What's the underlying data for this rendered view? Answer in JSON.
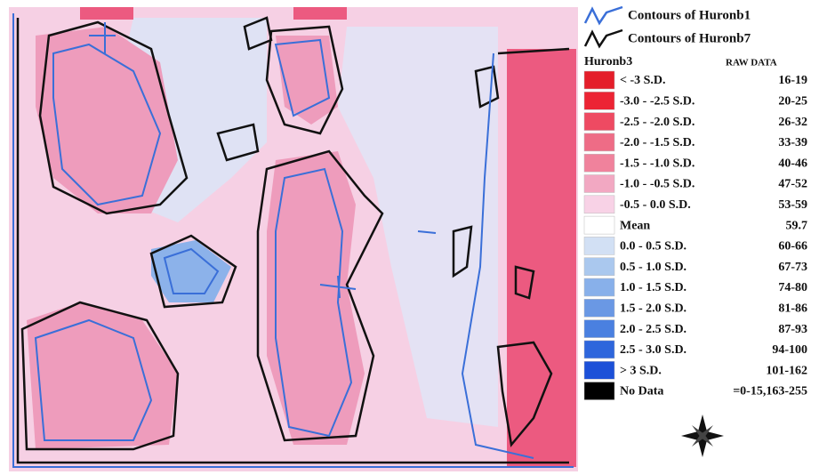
{
  "legend": {
    "contour1": "Contours of Huronb1",
    "contour2": "Contours of Huronb7",
    "title": "Huronb3",
    "raw_header": "RAW DATA",
    "rows": [
      {
        "label": "< -3 S.D.",
        "raw": "16-19",
        "color": "#e41e2a"
      },
      {
        "label": "-3.0 - -2.5 S.D.",
        "raw": "20-25",
        "color": "#ec2434"
      },
      {
        "label": "-2.5 - -2.0 S.D.",
        "raw": "26-32",
        "color": "#ee4a62"
      },
      {
        "label": "-2.0 - -1.5 S.D.",
        "raw": "33-39",
        "color": "#ee6c86"
      },
      {
        "label": "-1.5 - -1.0 S.D.",
        "raw": "40-46",
        "color": "#f0829c"
      },
      {
        "label": "-1.0 - -0.5 S.D.",
        "raw": "47-52",
        "color": "#f2a8c2"
      },
      {
        "label": "-0.5 - 0.0 S.D.",
        "raw": "53-59",
        "color": "#f8d2e6"
      },
      {
        "label": "Mean",
        "raw": "59.7",
        "color": "#ffffff"
      },
      {
        "label": "0.0 - 0.5 S.D.",
        "raw": "60-66",
        "color": "#d2e0f4"
      },
      {
        "label": "0.5 - 1.0 S.D.",
        "raw": "67-73",
        "color": "#aac8ee"
      },
      {
        "label": "1.0 - 1.5 S.D.",
        "raw": "74-80",
        "color": "#88b0ea"
      },
      {
        "label": "1.5 - 2.0 S.D.",
        "raw": "81-86",
        "color": "#6a98e4"
      },
      {
        "label": "2.0 - 2.5 S.D.",
        "raw": "87-93",
        "color": "#4a80e0"
      },
      {
        "label": "2.5 - 3.0 S.D.",
        "raw": "94-100",
        "color": "#2e66dc"
      },
      {
        "label": "> 3 S.D.",
        "raw": "101-162",
        "color": "#1c50d8"
      },
      {
        "label": "No Data",
        "raw": "=0-15,163-255",
        "color": "#000000"
      }
    ]
  }
}
